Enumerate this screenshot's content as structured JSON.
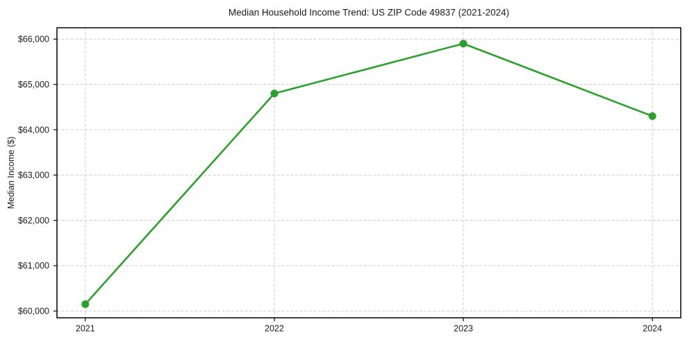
{
  "chart_data": {
    "type": "line",
    "title": "Median Household Income Trend: US ZIP Code 49837 (2021-2024)",
    "xlabel": "",
    "ylabel": "Median Income ($)",
    "x": [
      2021,
      2022,
      2023,
      2024
    ],
    "x_tick_labels": [
      "2021",
      "2022",
      "2023",
      "2024"
    ],
    "series": [
      {
        "name": "Median Household Income",
        "values": [
          60150,
          64800,
          65900,
          64300
        ],
        "color": "#2ca02c",
        "marker": "circle"
      }
    ],
    "y_ticks": [
      60000,
      61000,
      62000,
      63000,
      64000,
      65000,
      66000
    ],
    "y_tick_labels": [
      "$60,000",
      "$61,000",
      "$62,000",
      "$63,000",
      "$64,000",
      "$65,000",
      "$66,000"
    ],
    "xlim": [
      2020.85,
      2024.15
    ],
    "ylim": [
      59850,
      66250
    ],
    "grid": true,
    "grid_color": "#cccccc",
    "grid_style": "dashed",
    "axis_color": "#000000",
    "text_color": "#1a1a1a",
    "background_color": "#ffffff",
    "legend_position": "none"
  }
}
